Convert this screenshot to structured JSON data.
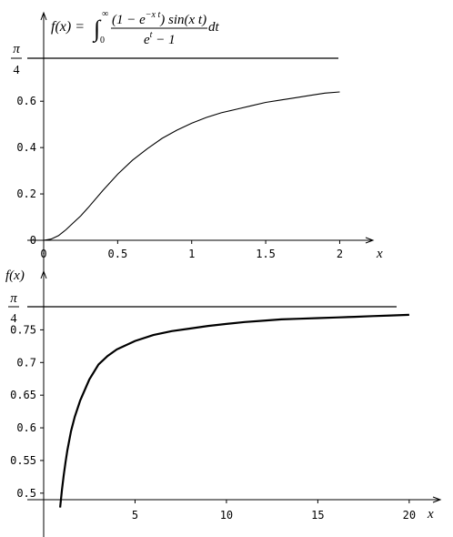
{
  "formula": {
    "lhs": "f(x) =",
    "integral_sign": "∫",
    "upper_limit": "∞",
    "lower_limit": "0",
    "numerator": "(1 − e",
    "numerator_exp": "−x t",
    "numerator_rest": ") sin(x t)",
    "denominator": "e",
    "denominator_exp": "t",
    "denominator_rest": " − 1",
    "differential": "dt"
  },
  "pi_over_4": {
    "numerator": "π",
    "denominator": "4"
  },
  "chart_data": [
    {
      "type": "line",
      "xlabel": "x",
      "ylabel": "",
      "xlim": [
        0,
        2.2
      ],
      "ylim": [
        0,
        0.785398
      ],
      "xticks": [
        0,
        0.5,
        1,
        1.5,
        2
      ],
      "xtick_labels": [
        "0",
        "0.5",
        "1",
        "1.5",
        "2"
      ],
      "yticks": [
        0,
        0.2,
        0.4,
        0.6
      ],
      "ytick_labels": [
        "0",
        "0.2",
        "0.4",
        "0.6"
      ],
      "reference_line": {
        "y": 0.785398,
        "label": "π/4"
      },
      "series": [
        {
          "x": [
            0,
            0.05,
            0.1,
            0.15,
            0.2,
            0.25,
            0.3,
            0.4,
            0.5,
            0.6,
            0.7,
            0.8,
            0.9,
            1.0,
            1.1,
            1.2,
            1.3,
            1.4,
            1.5,
            1.6,
            1.7,
            1.8,
            1.9,
            2.0
          ],
          "y": [
            0,
            0.005,
            0.02,
            0.045,
            0.075,
            0.105,
            0.14,
            0.215,
            0.285,
            0.345,
            0.395,
            0.44,
            0.475,
            0.505,
            0.53,
            0.55,
            0.565,
            0.58,
            0.595,
            0.605,
            0.615,
            0.625,
            0.635,
            0.64
          ]
        }
      ]
    },
    {
      "type": "line",
      "xlabel": "x",
      "ylabel": "f(x)",
      "xlim": [
        0,
        21.5
      ],
      "ylim": [
        0.49,
        0.785398
      ],
      "xticks": [
        5,
        10,
        15,
        20
      ],
      "xtick_labels": [
        "5",
        "10",
        "15",
        "20"
      ],
      "yticks": [
        0.5,
        0.55,
        0.6,
        0.65,
        0.7,
        0.75
      ],
      "ytick_labels": [
        "0.5",
        "0.55",
        "0.6",
        "0.65",
        "0.7",
        "0.75"
      ],
      "reference_line": {
        "y": 0.785398,
        "label": "π/4"
      },
      "series": [
        {
          "x": [
            0.9,
            1.0,
            1.1,
            1.2,
            1.3,
            1.5,
            1.7,
            2.0,
            2.5,
            3.0,
            3.5,
            4.0,
            5.0,
            6.0,
            7.0,
            8.0,
            9.0,
            10.0,
            11.0,
            12.0,
            13.0,
            14.0,
            15.0,
            16.0,
            17.0,
            18.0,
            19.0,
            20.0
          ],
          "y": [
            0.478,
            0.505,
            0.528,
            0.548,
            0.566,
            0.595,
            0.617,
            0.642,
            0.674,
            0.697,
            0.71,
            0.72,
            0.733,
            0.742,
            0.748,
            0.752,
            0.756,
            0.759,
            0.762,
            0.764,
            0.766,
            0.767,
            0.768,
            0.769,
            0.77,
            0.771,
            0.772,
            0.773
          ]
        }
      ]
    }
  ]
}
